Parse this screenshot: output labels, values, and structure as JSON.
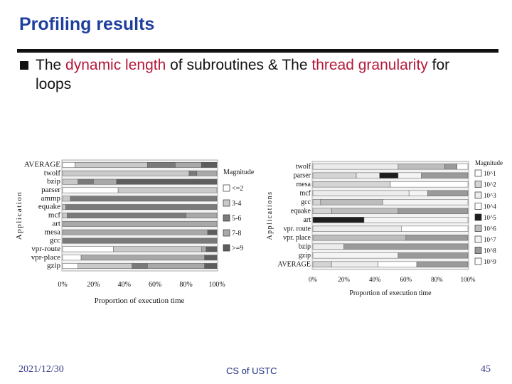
{
  "slide": {
    "title": "Profiling results",
    "bullet": {
      "part1": "The ",
      "hl1": "dynamic length",
      "part2": " of subroutines & The ",
      "hl2": "thread granularity",
      "part3": " for loops"
    },
    "footer": {
      "date": "2021/12/30",
      "center": "CS of USTC",
      "page": "45"
    }
  },
  "colors": {
    "title": "#1f3f9f",
    "highlight": "#b5183a"
  },
  "chart_data": [
    {
      "type": "bar",
      "orientation": "horizontal-stacked-100",
      "xlabel": "Proportion of execution time",
      "ylabel": "Application",
      "legend_title": "Magnitude",
      "legend_position": "right",
      "xticks": [
        "0%",
        "20%",
        "40%",
        "60%",
        "80%",
        "100%"
      ],
      "xlim": [
        0,
        100
      ],
      "categories": [
        "AVERAGE",
        "twolf",
        "bzip",
        "parser",
        "ammp",
        "equake",
        "mcf",
        "art",
        "mesa",
        "gcc",
        "vpr-route",
        "vpr-place",
        "gzip"
      ],
      "series": [
        {
          "name": "<=2",
          "color": "#ffffff",
          "values": [
            8,
            0,
            0,
            36,
            0,
            0,
            0,
            0,
            0,
            0,
            33,
            12,
            10
          ]
        },
        {
          "name": "3-4",
          "color": "#c9c9c9",
          "values": [
            47,
            82,
            10,
            64,
            5,
            2,
            3,
            0,
            0,
            0,
            57,
            0,
            35
          ]
        },
        {
          "name": "5-6",
          "color": "#7a7a7a",
          "values": [
            18,
            5,
            10,
            0,
            95,
            98,
            77,
            0,
            0,
            100,
            0,
            0,
            10
          ]
        },
        {
          "name": "7-8",
          "color": "#a8a8a8",
          "values": [
            17,
            13,
            15,
            0,
            0,
            0,
            20,
            100,
            94,
            0,
            3,
            80,
            37
          ]
        },
        {
          "name": ">=9",
          "color": "#5e5e5e",
          "values": [
            10,
            0,
            65,
            0,
            0,
            0,
            0,
            0,
            6,
            0,
            7,
            8,
            8
          ]
        }
      ]
    },
    {
      "type": "bar",
      "orientation": "horizontal-stacked-100",
      "xlabel": "Proportion of execution time",
      "ylabel": "Applications",
      "legend_title": "Magnitude",
      "legend_position": "right",
      "xticks": [
        "0%",
        "20%",
        "40%",
        "60%",
        "80%",
        "100%"
      ],
      "xlim": [
        0,
        100
      ],
      "categories": [
        "twolf",
        "parser",
        "mesa",
        "mcf",
        "gcc",
        "equake",
        "art",
        "vpr. route",
        "vpr. place",
        "bzip",
        "gzip",
        "AVERAGE"
      ],
      "series": [
        {
          "name": "10^1",
          "color": "#ffffff",
          "values": [
            0,
            0,
            0,
            0,
            0,
            0,
            0,
            0,
            0,
            0,
            0,
            0
          ]
        },
        {
          "name": "10^2",
          "color": "#d4d4d4",
          "values": [
            0,
            28,
            50,
            0,
            5,
            12,
            0,
            0,
            0,
            0,
            0,
            12
          ]
        },
        {
          "name": "10^3",
          "color": "#ececec",
          "values": [
            55,
            15,
            0,
            62,
            0,
            0,
            0,
            57,
            0,
            20,
            0,
            30
          ]
        },
        {
          "name": "10^4",
          "color": "#ffffff",
          "values": [
            0,
            0,
            50,
            0,
            0,
            0,
            0,
            43,
            0,
            0,
            0,
            25
          ]
        },
        {
          "name": "10^5",
          "color": "#1e1e1e",
          "values": [
            0,
            12,
            0,
            0,
            0,
            0,
            33,
            0,
            0,
            0,
            0,
            0
          ]
        },
        {
          "name": "10^6",
          "color": "#bdbdbd",
          "values": [
            30,
            0,
            0,
            0,
            40,
            43,
            0,
            0,
            60,
            0,
            0,
            0
          ]
        },
        {
          "name": "10^7",
          "color": "#f4f4f4",
          "values": [
            0,
            15,
            0,
            12,
            55,
            0,
            67,
            0,
            0,
            0,
            55,
            0
          ]
        },
        {
          "name": "10^8",
          "color": "#9a9a9a",
          "values": [
            8,
            30,
            0,
            26,
            0,
            45,
            0,
            0,
            40,
            80,
            45,
            33
          ]
        },
        {
          "name": "10^9",
          "color": "#ffffff",
          "values": [
            7,
            0,
            0,
            0,
            0,
            0,
            0,
            0,
            0,
            0,
            0,
            0
          ]
        }
      ]
    }
  ]
}
